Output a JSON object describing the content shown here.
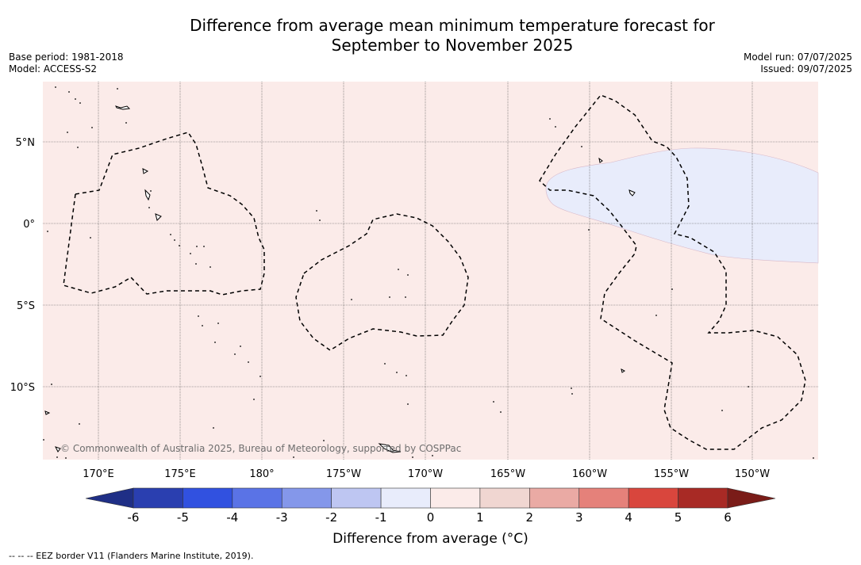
{
  "header": {
    "title_line1": "Difference from average mean minimum temperature forecast for",
    "title_line2": "September to November 2025",
    "base_period": "Base period: 1981-2018",
    "model": "Model: ACCESS-S2",
    "model_run": "Model run: 07/07/2025",
    "issued": "Issued: 09/07/2025"
  },
  "map": {
    "background_color": "#fbebe9",
    "anomaly_region_color": "#e8ecfb",
    "lat_labels": [
      "5°N",
      "0°",
      "5°S",
      "10°S"
    ],
    "lon_labels": [
      "170°E",
      "175°E",
      "180°",
      "175°W",
      "170°W",
      "165°W",
      "160°W",
      "155°W",
      "150°W"
    ],
    "copyright": "© Commonwealth of Australia 2025, Bureau of Meteorology, supported by COSPPac"
  },
  "colorbar": {
    "title": "Difference from average (°C)",
    "ticks": [
      "-6",
      "-5",
      "-4",
      "-3",
      "-2",
      "-1",
      "0",
      "1",
      "2",
      "3",
      "4",
      "5",
      "6"
    ],
    "colors": [
      "#1f2f86",
      "#2a3fb0",
      "#3151e0",
      "#5a73e6",
      "#8497ea",
      "#bec6f2",
      "#e8ecfb",
      "#fbebe9",
      "#f0d6d1",
      "#eaaaa4",
      "#e5817a",
      "#d9463d",
      "#a82a25",
      "#7a1c18"
    ]
  },
  "footnote": "--  --  -- EEZ border V11 (Flanders Marine Institute, 2019)."
}
